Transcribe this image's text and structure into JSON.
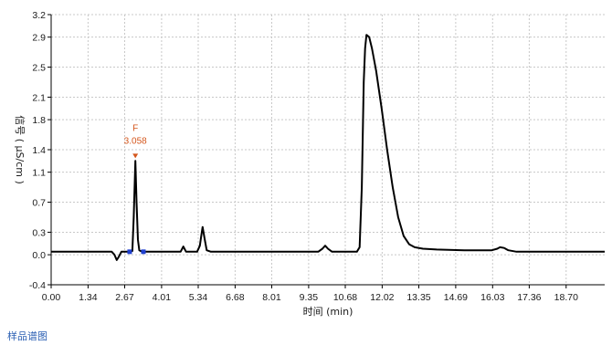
{
  "footer_label": "样品谱图",
  "chart_data": {
    "type": "line",
    "xlabel": "时间 (min)",
    "ylabel": "信号 ( μS/cm )",
    "xlim": [
      0,
      20.1
    ],
    "ylim": [
      -0.4,
      3.2
    ],
    "x_ticks": [
      "0.00",
      "1.34",
      "2.67",
      "4.01",
      "5.34",
      "6.68",
      "8.01",
      "9.35",
      "10.68",
      "12.02",
      "13.35",
      "14.69",
      "16.03",
      "17.36",
      "18.70"
    ],
    "y_ticks": [
      "3.2",
      "2.9",
      "2.5",
      "2.1",
      "1.8",
      "1.4",
      "1.1",
      "0.7",
      "0.3",
      "0.0",
      "-0.4"
    ],
    "grid": true,
    "line_color": "#000000",
    "grid_color": "#c8c8c8",
    "annotation": {
      "name": "F",
      "time": "3.058",
      "x": 3.058,
      "y": 1.25,
      "color": "#d4561c"
    },
    "baseline_markers": {
      "x": [
        2.85,
        3.35
      ],
      "y": 0.04,
      "color": "#2040d0"
    },
    "series": [
      {
        "x": [
          0.0,
          2.2,
          2.3,
          2.38,
          2.45,
          2.55,
          2.85,
          2.95,
          3.0,
          3.058,
          3.1,
          3.15,
          3.2,
          3.3,
          3.5,
          4.7,
          4.8,
          4.9,
          5.0,
          5.3,
          5.4,
          5.45,
          5.5,
          5.58,
          5.65,
          5.8,
          9.7,
          9.85,
          9.95,
          10.05,
          10.2,
          10.4,
          11.1,
          11.2,
          11.28,
          11.35,
          11.4,
          11.45,
          11.55,
          11.65,
          11.8,
          12.0,
          12.2,
          12.4,
          12.6,
          12.8,
          13.0,
          13.2,
          13.5,
          14.0,
          15.0,
          15.8,
          16.0,
          16.2,
          16.3,
          16.45,
          16.6,
          16.9,
          17.2,
          18.0,
          20.1
        ],
        "y": [
          0.04,
          0.04,
          0.0,
          -0.07,
          -0.03,
          0.04,
          0.04,
          0.05,
          0.5,
          1.25,
          0.7,
          0.2,
          0.06,
          0.04,
          0.04,
          0.04,
          0.11,
          0.04,
          0.04,
          0.04,
          0.12,
          0.25,
          0.37,
          0.2,
          0.06,
          0.04,
          0.04,
          0.08,
          0.12,
          0.08,
          0.04,
          0.04,
          0.04,
          0.1,
          0.9,
          2.3,
          2.75,
          2.93,
          2.9,
          2.75,
          2.45,
          1.95,
          1.4,
          0.9,
          0.5,
          0.25,
          0.14,
          0.1,
          0.08,
          0.07,
          0.06,
          0.06,
          0.06,
          0.08,
          0.1,
          0.09,
          0.06,
          0.04,
          0.04,
          0.04,
          0.04
        ]
      }
    ]
  }
}
